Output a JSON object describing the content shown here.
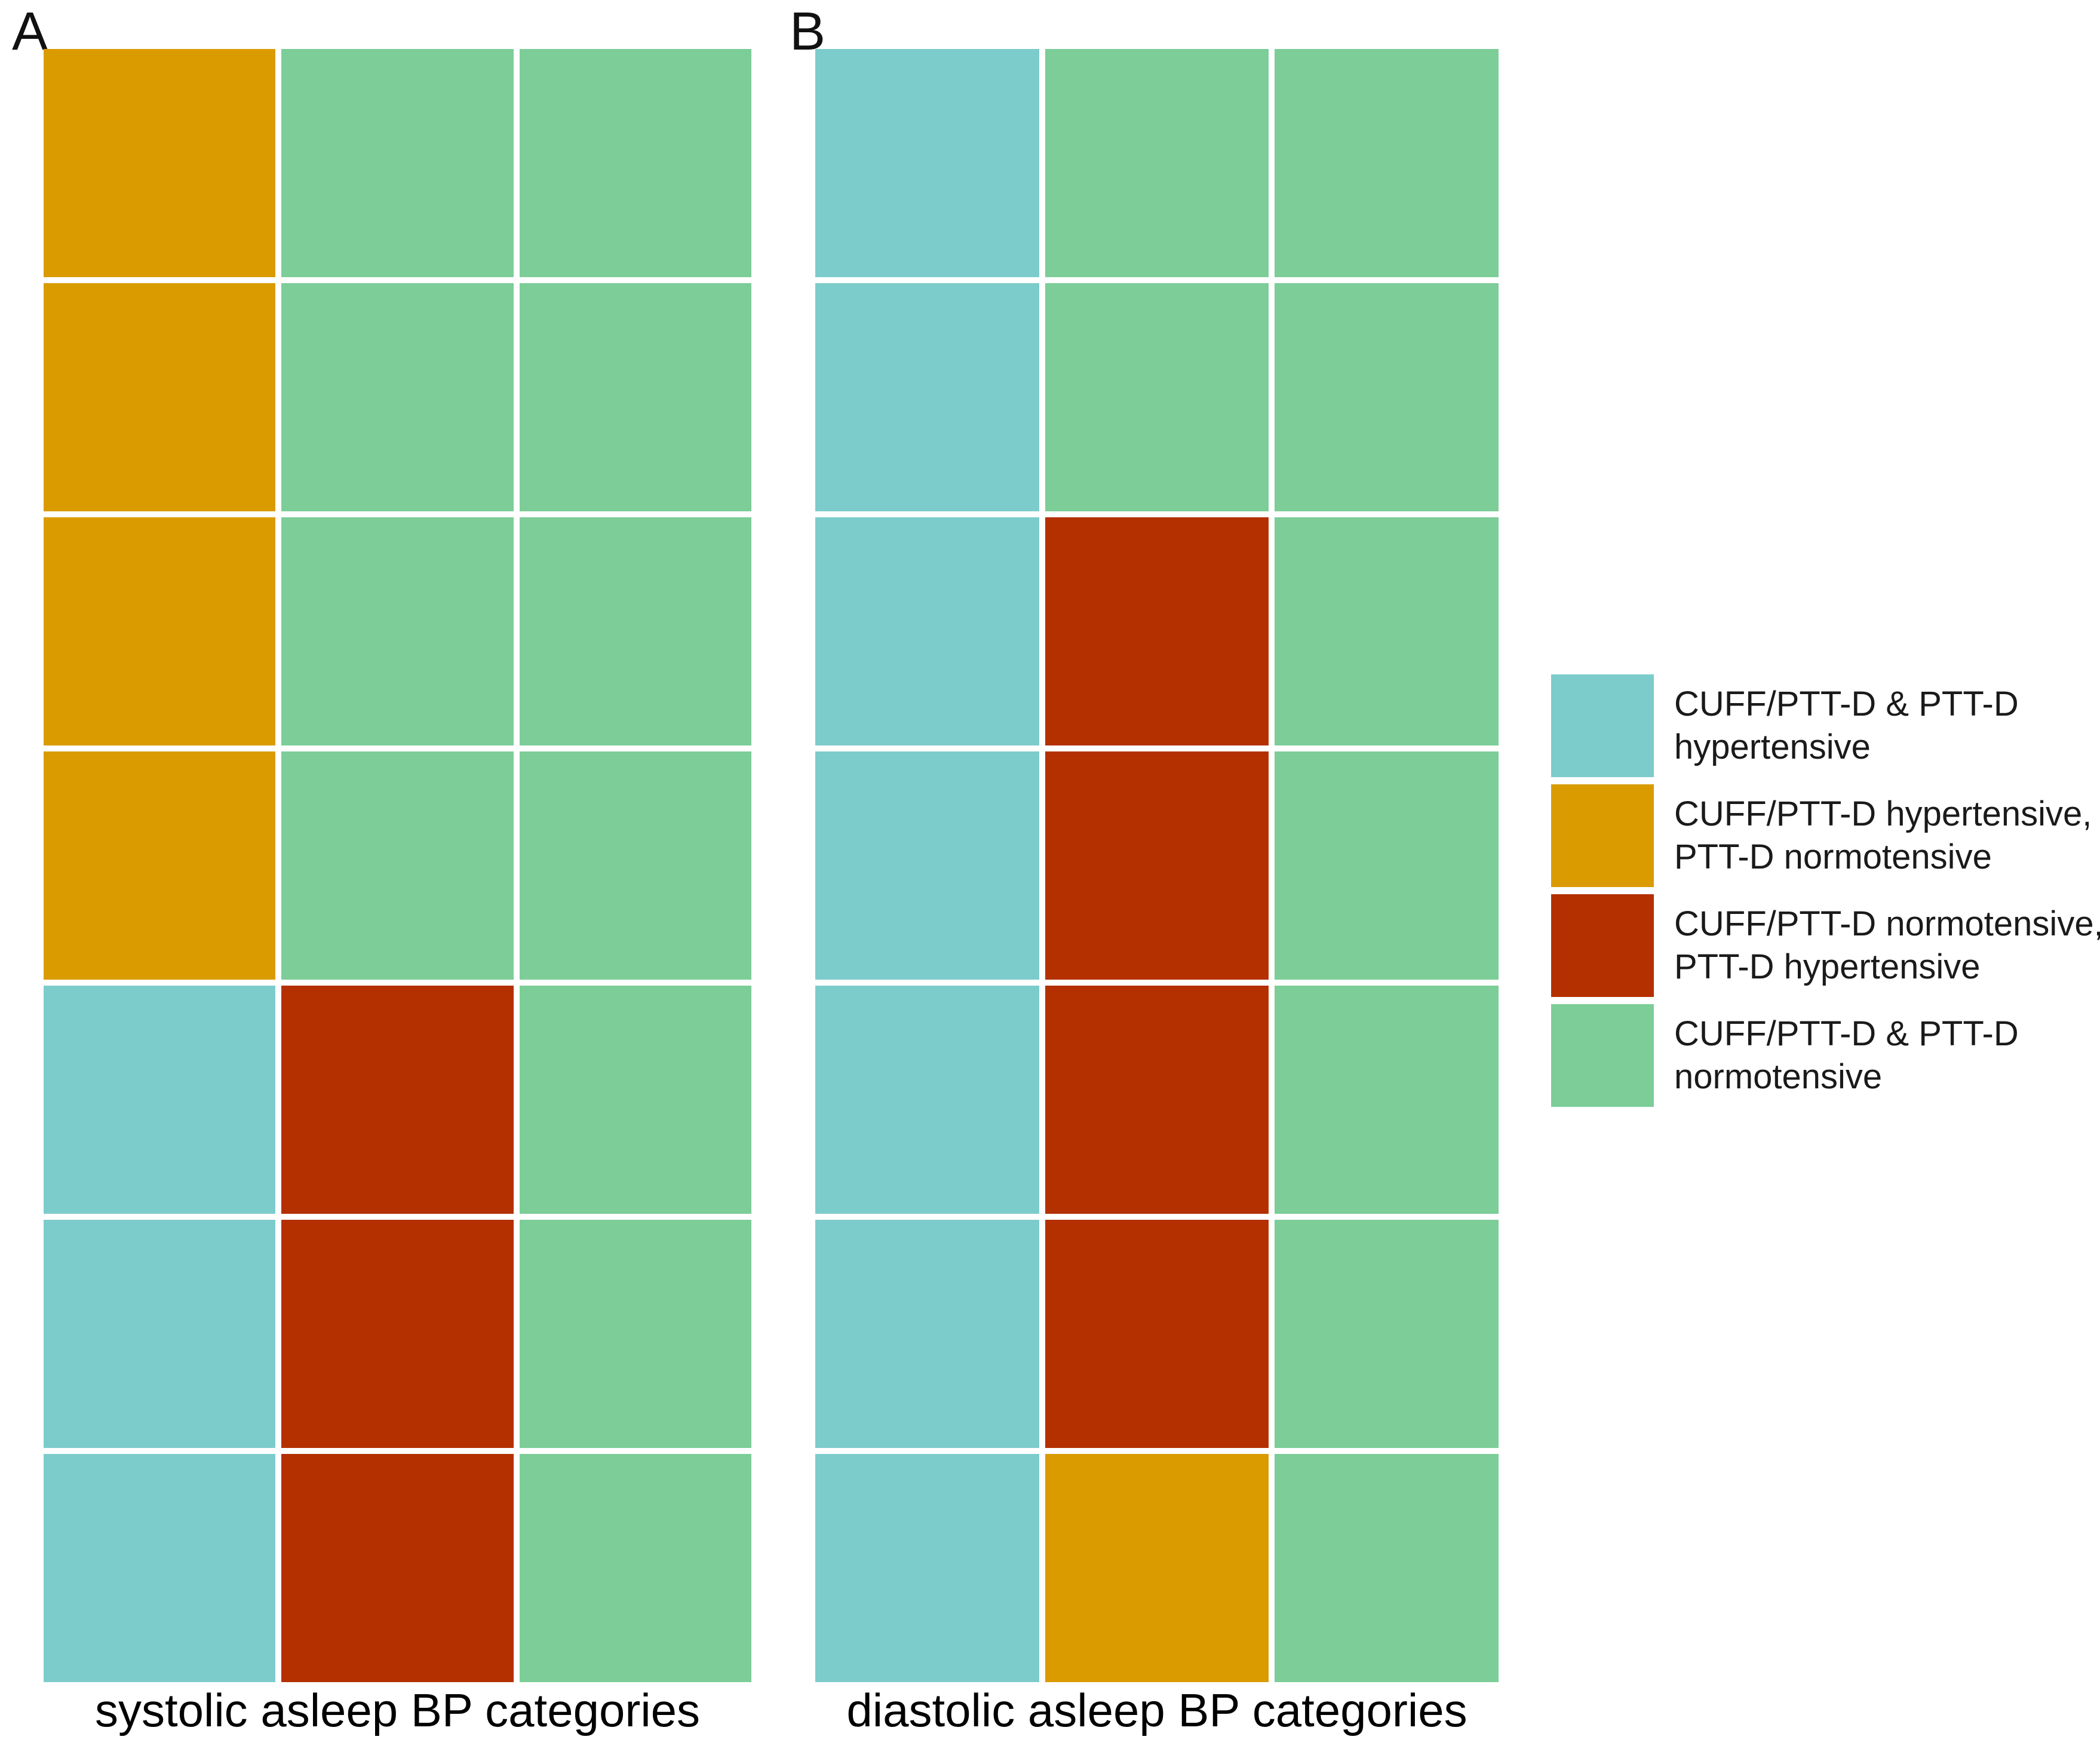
{
  "chart_data": {
    "type": "heatmap",
    "background": "#FFFFFF",
    "grid_line_color": "#FFFFFF",
    "legend_position": "right",
    "categories": [
      {
        "id": "both_hyp",
        "label_lines": [
          "CUFF/PTT-D & PTT-D",
          "hypertensive"
        ],
        "color": "#7CCCCB"
      },
      {
        "id": "cuff_hyp_ptt_norm",
        "label_lines": [
          "CUFF/PTT-D hypertensive,",
          "PTT-D normotensive"
        ],
        "color": "#DA9B00"
      },
      {
        "id": "cuff_norm_ptt_hyp",
        "label_lines": [
          "CUFF/PTT-D normotensive,",
          "PTT-D hypertensive"
        ],
        "color": "#B43000"
      },
      {
        "id": "both_norm",
        "label_lines": [
          "CUFF/PTT-D & PTT-D",
          "normotensive"
        ],
        "color": "#7CCD98"
      }
    ],
    "panels": [
      {
        "label": "A",
        "xlabel": "systolic asleep BP categories",
        "rows": 7,
        "columns": 3,
        "cells": [
          [
            "cuff_hyp_ptt_norm",
            "both_norm",
            "both_norm"
          ],
          [
            "cuff_hyp_ptt_norm",
            "both_norm",
            "both_norm"
          ],
          [
            "cuff_hyp_ptt_norm",
            "both_norm",
            "both_norm"
          ],
          [
            "cuff_hyp_ptt_norm",
            "both_norm",
            "both_norm"
          ],
          [
            "both_hyp",
            "cuff_norm_ptt_hyp",
            "both_norm"
          ],
          [
            "both_hyp",
            "cuff_norm_ptt_hyp",
            "both_norm"
          ],
          [
            "both_hyp",
            "cuff_norm_ptt_hyp",
            "both_norm"
          ]
        ]
      },
      {
        "label": "B",
        "xlabel": "diastolic asleep BP categories",
        "rows": 7,
        "columns": 3,
        "cells": [
          [
            "both_hyp",
            "both_norm",
            "both_norm"
          ],
          [
            "both_hyp",
            "both_norm",
            "both_norm"
          ],
          [
            "both_hyp",
            "cuff_norm_ptt_hyp",
            "both_norm"
          ],
          [
            "both_hyp",
            "cuff_norm_ptt_hyp",
            "both_norm"
          ],
          [
            "both_hyp",
            "cuff_norm_ptt_hyp",
            "both_norm"
          ],
          [
            "both_hyp",
            "cuff_norm_ptt_hyp",
            "both_norm"
          ],
          [
            "both_hyp",
            "cuff_hyp_ptt_norm",
            "both_norm"
          ]
        ]
      }
    ]
  }
}
